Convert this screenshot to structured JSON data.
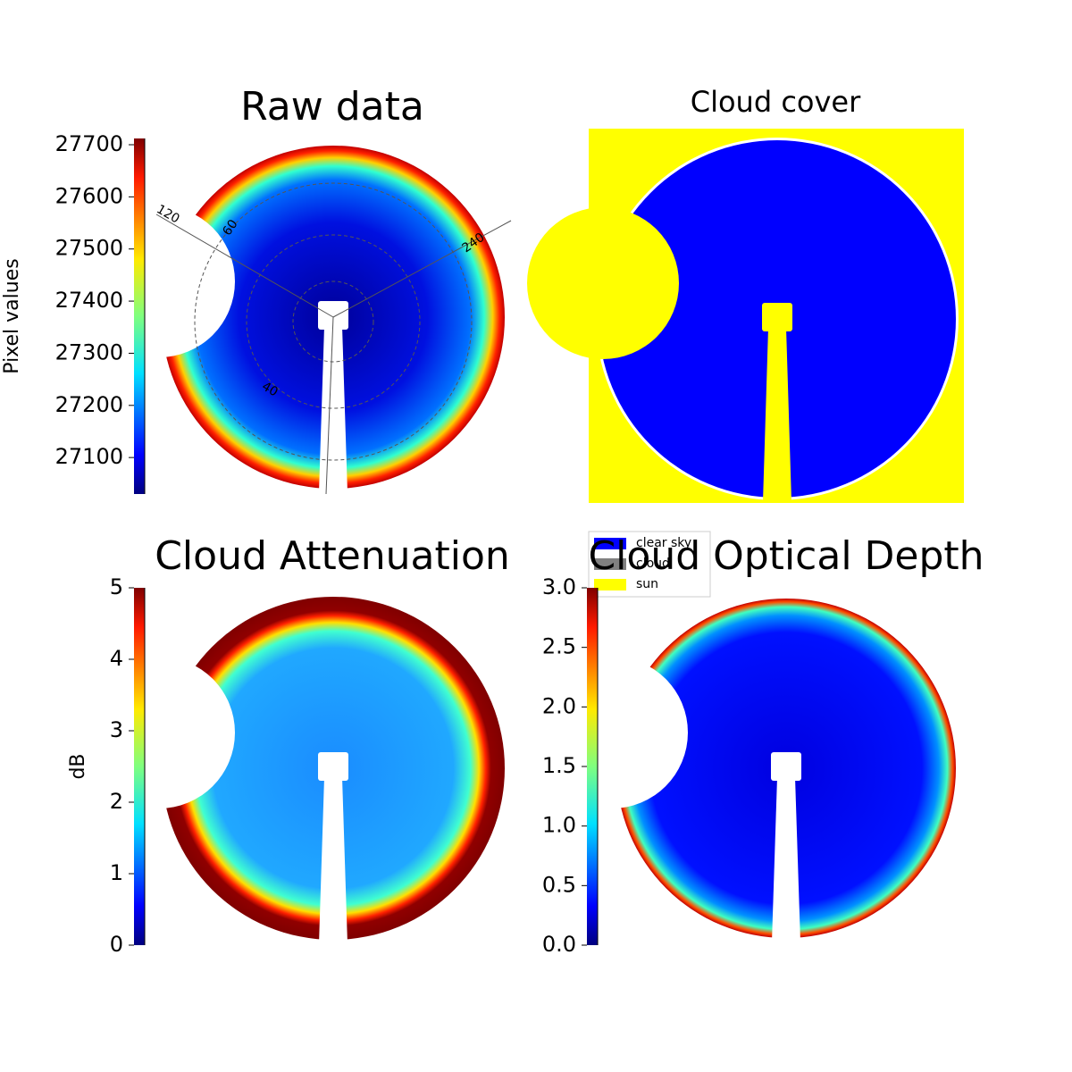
{
  "chart_data": [
    {
      "type": "image",
      "title": "Raw data",
      "colorbar": {
        "label": "Pixel values",
        "lim": [
          27030,
          27712
        ],
        "ticks": [
          27100,
          27200,
          27300,
          27400,
          27500,
          27600,
          27700
        ]
      },
      "annotations": [
        "120",
        "60",
        "240",
        "40"
      ]
    },
    {
      "type": "classification",
      "title": "Cloud cover",
      "categories": [
        "clear sky",
        "cloud",
        "sun"
      ],
      "colors": [
        "#0000ff",
        "#808080",
        "#ffff00"
      ]
    },
    {
      "type": "image",
      "title": "Cloud Attenuation",
      "colorbar": {
        "label": "dB",
        "lim": [
          0,
          5
        ],
        "ticks": [
          0,
          1,
          2,
          3,
          4,
          5
        ]
      }
    },
    {
      "type": "image",
      "title": "Cloud Optical Depth",
      "colorbar": {
        "lim": [
          0,
          3
        ],
        "ticks": [
          {
            "value": 0,
            "label": "0.0"
          },
          {
            "value": 0.5,
            "label": "0.5"
          },
          {
            "value": 1,
            "label": "1.0"
          },
          {
            "value": 1.5,
            "label": "1.5"
          },
          {
            "value": 2,
            "label": "2.0"
          },
          {
            "value": 2.5,
            "label": "2.5"
          },
          {
            "value": 3,
            "label": "3.0"
          }
        ]
      }
    }
  ]
}
